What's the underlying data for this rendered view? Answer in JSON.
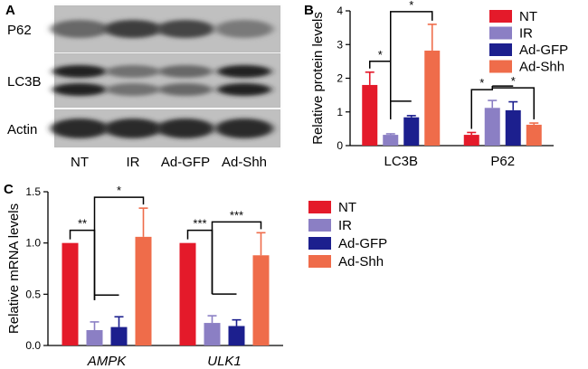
{
  "panels": {
    "a": {
      "label": "A",
      "blots": [
        {
          "name": "P62",
          "rowHeight": 1.0
        },
        {
          "name": "LC3B",
          "rowHeight": 1.0
        },
        {
          "name": "Actin",
          "rowHeight": 1.0
        }
      ],
      "lanes": [
        "NT",
        "IR",
        "Ad-GFP",
        "Ad-Shh"
      ],
      "band_intensity": {
        "P62": [
          0.55,
          0.8,
          0.75,
          0.45
        ],
        "LC3B": [
          0.95,
          0.5,
          0.55,
          0.95
        ],
        "Actin": [
          0.9,
          0.9,
          0.9,
          0.9
        ]
      }
    },
    "b": {
      "label": "B"
    },
    "c": {
      "label": "C"
    }
  },
  "legend": [
    "NT",
    "IR",
    "Ad-GFP",
    "Ad-Shh"
  ],
  "colors": {
    "NT": "#e41a2a",
    "IR": "#8b7fc4",
    "Ad-GFP": "#1c1f8e",
    "Ad-Shh": "#ef6c4a"
  },
  "chart_data": [
    {
      "panel": "B",
      "type": "bar",
      "ylabel": "Relative protein levels",
      "ylim": [
        0,
        4
      ],
      "yticks": [
        0,
        1,
        2,
        3,
        4
      ],
      "categories": [
        "LC3B",
        "P62"
      ],
      "series": [
        {
          "name": "NT",
          "values": [
            1.8,
            0.32
          ],
          "errors": [
            0.38,
            0.07
          ]
        },
        {
          "name": "IR",
          "values": [
            0.32,
            1.12
          ],
          "errors": [
            0.03,
            0.22
          ]
        },
        {
          "name": "Ad-GFP",
          "values": [
            0.84,
            1.05
          ],
          "errors": [
            0.05,
            0.25
          ]
        },
        {
          "name": "Ad-Shh",
          "values": [
            2.82,
            0.62
          ],
          "errors": [
            0.78,
            0.05
          ]
        }
      ],
      "significance": [
        {
          "category": 0,
          "from": 0,
          "to": 1,
          "label": "*"
        },
        {
          "category": 0,
          "from": 1,
          "to": 3,
          "label": "*"
        },
        {
          "category": 1,
          "from": 0,
          "to": 1,
          "label": "*"
        },
        {
          "category": 1,
          "from": 1,
          "to": 3,
          "label": "*"
        }
      ]
    },
    {
      "panel": "C",
      "type": "bar",
      "ylabel": "Relative mRNA levels",
      "ylim": [
        0,
        1.5
      ],
      "yticks": [
        0.0,
        0.5,
        1.0,
        1.5
      ],
      "categories": [
        "AMPK",
        "ULK1"
      ],
      "categories_italic": true,
      "series": [
        {
          "name": "NT",
          "values": [
            1.0,
            1.0
          ],
          "errors": [
            0,
            0
          ]
        },
        {
          "name": "IR",
          "values": [
            0.15,
            0.22
          ],
          "errors": [
            0.08,
            0.07
          ]
        },
        {
          "name": "Ad-GFP",
          "values": [
            0.18,
            0.19
          ],
          "errors": [
            0.1,
            0.06
          ]
        },
        {
          "name": "Ad-Shh",
          "values": [
            1.06,
            0.88
          ],
          "errors": [
            0.28,
            0.22
          ]
        }
      ],
      "significance": [
        {
          "category": 0,
          "from": 0,
          "to": 1,
          "label": "**"
        },
        {
          "category": 0,
          "from": 1,
          "to": 3,
          "label": "*"
        },
        {
          "category": 1,
          "from": 0,
          "to": 1,
          "label": "***"
        },
        {
          "category": 1,
          "from": 1,
          "to": 3,
          "label": "***"
        }
      ]
    }
  ]
}
